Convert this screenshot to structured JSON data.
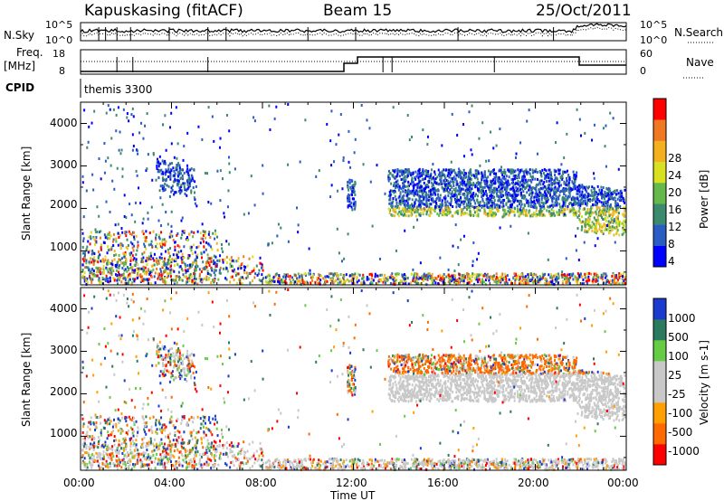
{
  "header": {
    "title": "Kapuskasing (fitACF)",
    "beam": "Beam 15",
    "date": "25/Oct/2011"
  },
  "top_panels": {
    "nsky_label": "N.Sky",
    "nsky_ticks": [
      "10^5",
      "10^0"
    ],
    "nsearch_label": "N.Search",
    "nsearch_ticks": [
      "10^5",
      "10^0"
    ],
    "freq_label": "Freq.",
    "freq_unit": "[MHz]",
    "freq_ticks": [
      "18",
      "8"
    ],
    "nave_label": "Nave",
    "nave_ticks": [
      "60",
      "0"
    ],
    "cpid_label": "CPID",
    "cpid_value": "themis 3300"
  },
  "colors": {
    "power_scale": [
      "#0000ff",
      "#2a5cc4",
      "#3c8a6e",
      "#66b84a",
      "#d8e020",
      "#f5b020",
      "#f07820",
      "#ff0000"
    ],
    "velocity_scale": [
      "#ff0000",
      "#ff6a00",
      "#ffa000",
      "#c8c8c8",
      "#c8c8c8",
      "#66cc44",
      "#2a7a60",
      "#1a3ad0"
    ]
  },
  "chart_data": [
    {
      "type": "heatmap",
      "ylabel": "Slant Range [km]",
      "xlabel": "Time UT",
      "x_ticks": [
        "00:00",
        "04:00",
        "08:00",
        "12:00",
        "16:00",
        "20:00",
        "00:00"
      ],
      "y_ticks": [
        "1000",
        "2000",
        "3000",
        "4000"
      ],
      "ylim": [
        200,
        4500
      ],
      "colorbar": {
        "label": "Power [dB]",
        "ticks": [
          "28",
          "24",
          "20",
          "16",
          "12",
          "8",
          "4"
        ],
        "range": [
          0,
          30
        ]
      }
    },
    {
      "type": "heatmap",
      "ylabel": "Slant Range [km]",
      "xlabel": "Time UT",
      "x_ticks": [
        "00:00",
        "04:00",
        "08:00",
        "12:00",
        "16:00",
        "20:00",
        "00:00"
      ],
      "y_ticks": [
        "1000",
        "2000",
        "3000",
        "4000"
      ],
      "ylim": [
        200,
        4500
      ],
      "colorbar": {
        "label": "Velocity [m s-1]",
        "ticks": [
          "1000",
          "500",
          "100",
          "25",
          "-25",
          "-100",
          "-500",
          "-1000"
        ]
      }
    }
  ]
}
